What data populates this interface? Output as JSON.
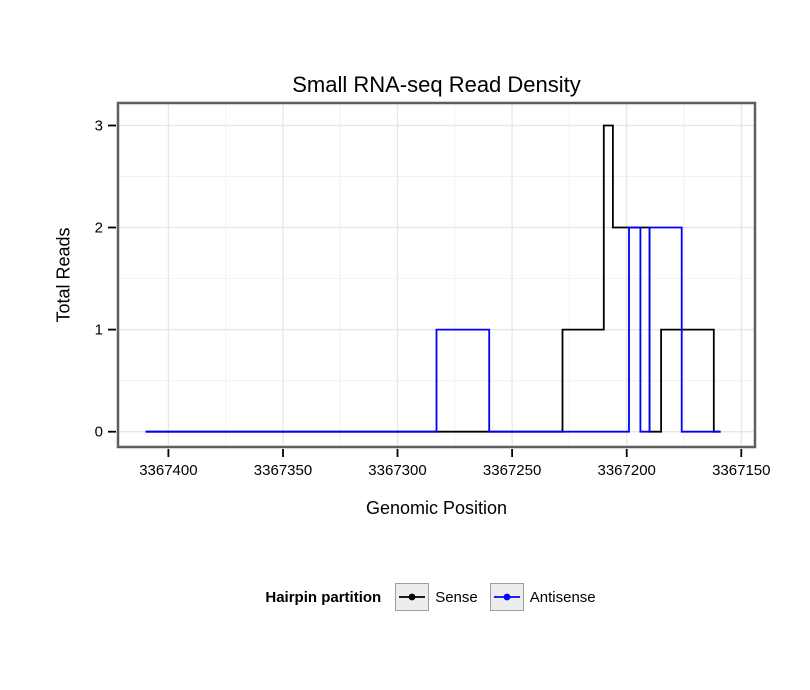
{
  "chart_data": {
    "type": "line",
    "step": true,
    "title": "Small RNA-seq Read Density",
    "xlabel": "Genomic Position",
    "ylabel": "Total Reads",
    "x_reversed": true,
    "x_range": [
      3367422,
      3367144
    ],
    "y_range": [
      -0.15,
      3.22
    ],
    "x_ticks": [
      3367400,
      3367350,
      3367300,
      3367250,
      3367200,
      3367150
    ],
    "x_minor_ticks": [
      3367375,
      3367325,
      3367275,
      3367225,
      3367175
    ],
    "y_ticks": [
      0,
      1,
      2,
      3
    ],
    "y_minor_ticks": [
      0.5,
      1.5,
      2.5
    ],
    "grid": true,
    "legend_title": "Hairpin partition",
    "legend_position": "bottom",
    "panel_border_color": "#5e5e5e",
    "major_grid_color": "#e6e6e6",
    "minor_grid_color": "#f2f2f2",
    "series": [
      {
        "name": "Sense",
        "color": "#000000",
        "points": [
          [
            3367410,
            0
          ],
          [
            3367228,
            0
          ],
          [
            3367228,
            1
          ],
          [
            3367210,
            1
          ],
          [
            3367210,
            3
          ],
          [
            3367206,
            3
          ],
          [
            3367206,
            2
          ],
          [
            3367190,
            2
          ],
          [
            3367190,
            0
          ],
          [
            3367185,
            0
          ],
          [
            3367185,
            1
          ],
          [
            3367162,
            1
          ],
          [
            3367162,
            0
          ],
          [
            3367159,
            0
          ]
        ]
      },
      {
        "name": "Antisense",
        "color": "#0000FF",
        "points": [
          [
            3367410,
            0
          ],
          [
            3367283,
            0
          ],
          [
            3367283,
            1
          ],
          [
            3367260,
            1
          ],
          [
            3367260,
            0
          ],
          [
            3367199,
            0
          ],
          [
            3367199,
            2
          ],
          [
            3367194,
            2
          ],
          [
            3367194,
            0
          ],
          [
            3367190,
            0
          ],
          [
            3367190,
            2
          ],
          [
            3367176,
            2
          ],
          [
            3367176,
            0
          ],
          [
            3367159,
            0
          ]
        ]
      }
    ]
  }
}
